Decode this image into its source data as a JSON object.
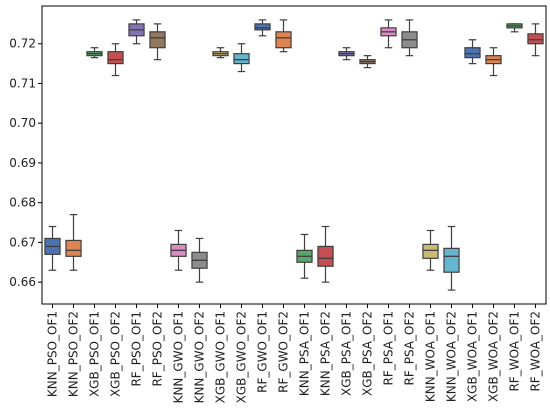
{
  "chart_data": {
    "type": "box",
    "title": "",
    "xlabel": "",
    "ylabel": "",
    "ylim": [
      0.6545,
      0.7295
    ],
    "yticks": [
      0.66,
      0.67,
      0.68,
      0.69,
      0.7,
      0.71,
      0.72
    ],
    "ytick_labels": [
      "0.66",
      "0.67",
      "0.68",
      "0.69",
      "0.70",
      "0.71",
      "0.72"
    ],
    "grid": false,
    "legend": "none",
    "categories": [
      "KNN_PSO_OF1",
      "KNN_PSO_OF2",
      "XGB_PSO_OF1",
      "XGB_PSO_OF2",
      "RF_PSO_OF1",
      "RF_PSO_OF2",
      "KNN_GWO_OF1",
      "KNN_GWO_OF2",
      "XGB_GWO_OF1",
      "XGB_GWO_OF2",
      "RF_GWO_OF1",
      "RF_GWO_OF2",
      "KNN_PSA_OF1",
      "KNN_PSA_OF2",
      "XGB_PSA_OF1",
      "XGB_PSA_OF2",
      "RF_PSA_OF1",
      "RF_PSA_OF2",
      "KNN_WOA_OF1",
      "KNN_WOA_OF2",
      "XGB_WOA_OF1",
      "XGB_WOA_OF2",
      "RF_WOA_OF1",
      "RF_WOA_OF2"
    ],
    "boxes": [
      {
        "label": "KNN_PSO_OF1",
        "whislo": 0.663,
        "q1": 0.667,
        "med": 0.669,
        "q3": 0.671,
        "whishi": 0.674,
        "color": "#4c72b0"
      },
      {
        "label": "KNN_PSO_OF2",
        "whislo": 0.663,
        "q1": 0.6665,
        "med": 0.668,
        "q3": 0.6705,
        "whishi": 0.677,
        "color": "#dd8452"
      },
      {
        "label": "XGB_PSO_OF1",
        "whislo": 0.7165,
        "q1": 0.717,
        "med": 0.7175,
        "q3": 0.718,
        "whishi": 0.719,
        "color": "#55a868"
      },
      {
        "label": "XGB_PSO_OF2",
        "whislo": 0.712,
        "q1": 0.715,
        "med": 0.716,
        "q3": 0.718,
        "whishi": 0.72,
        "color": "#c44e52"
      },
      {
        "label": "RF_PSO_OF1",
        "whislo": 0.72,
        "q1": 0.722,
        "med": 0.7235,
        "q3": 0.725,
        "whishi": 0.726,
        "color": "#8172b3"
      },
      {
        "label": "RF_PSO_OF2",
        "whislo": 0.716,
        "q1": 0.719,
        "med": 0.7215,
        "q3": 0.723,
        "whishi": 0.725,
        "color": "#937860"
      },
      {
        "label": "KNN_GWO_OF1",
        "whislo": 0.663,
        "q1": 0.6665,
        "med": 0.668,
        "q3": 0.6695,
        "whishi": 0.673,
        "color": "#da8bc3"
      },
      {
        "label": "KNN_GWO_OF2",
        "whislo": 0.66,
        "q1": 0.6635,
        "med": 0.6655,
        "q3": 0.6675,
        "whishi": 0.671,
        "color": "#8c8c8c"
      },
      {
        "label": "XGB_GWO_OF1",
        "whislo": 0.7165,
        "q1": 0.717,
        "med": 0.7175,
        "q3": 0.718,
        "whishi": 0.719,
        "color": "#ccb974"
      },
      {
        "label": "XGB_GWO_OF2",
        "whislo": 0.713,
        "q1": 0.715,
        "med": 0.716,
        "q3": 0.7175,
        "whishi": 0.72,
        "color": "#64b5cd"
      },
      {
        "label": "RF_GWO_OF1",
        "whislo": 0.722,
        "q1": 0.7235,
        "med": 0.724,
        "q3": 0.725,
        "whishi": 0.726,
        "color": "#4c72b0"
      },
      {
        "label": "RF_GWO_OF2",
        "whislo": 0.718,
        "q1": 0.719,
        "med": 0.7215,
        "q3": 0.723,
        "whishi": 0.726,
        "color": "#dd8452"
      },
      {
        "label": "KNN_PSA_OF1",
        "whislo": 0.661,
        "q1": 0.665,
        "med": 0.6665,
        "q3": 0.668,
        "whishi": 0.672,
        "color": "#55a868"
      },
      {
        "label": "KNN_PSA_OF2",
        "whislo": 0.66,
        "q1": 0.664,
        "med": 0.666,
        "q3": 0.669,
        "whishi": 0.674,
        "color": "#c44e52"
      },
      {
        "label": "XGB_PSA_OF1",
        "whislo": 0.716,
        "q1": 0.717,
        "med": 0.7175,
        "q3": 0.718,
        "whishi": 0.719,
        "color": "#8172b3"
      },
      {
        "label": "XGB_PSA_OF2",
        "whislo": 0.714,
        "q1": 0.715,
        "med": 0.7155,
        "q3": 0.716,
        "whishi": 0.717,
        "color": "#937860"
      },
      {
        "label": "RF_PSA_OF1",
        "whislo": 0.719,
        "q1": 0.722,
        "med": 0.723,
        "q3": 0.724,
        "whishi": 0.726,
        "color": "#da8bc3"
      },
      {
        "label": "RF_PSA_OF2",
        "whislo": 0.717,
        "q1": 0.719,
        "med": 0.721,
        "q3": 0.723,
        "whishi": 0.726,
        "color": "#8c8c8c"
      },
      {
        "label": "KNN_WOA_OF1",
        "whislo": 0.663,
        "q1": 0.666,
        "med": 0.668,
        "q3": 0.6695,
        "whishi": 0.673,
        "color": "#ccb974"
      },
      {
        "label": "KNN_WOA_OF2",
        "whislo": 0.658,
        "q1": 0.6625,
        "med": 0.6665,
        "q3": 0.6685,
        "whishi": 0.674,
        "color": "#64b5cd"
      },
      {
        "label": "XGB_WOA_OF1",
        "whislo": 0.715,
        "q1": 0.7165,
        "med": 0.7175,
        "q3": 0.719,
        "whishi": 0.721,
        "color": "#4c72b0"
      },
      {
        "label": "XGB_WOA_OF2",
        "whislo": 0.712,
        "q1": 0.715,
        "med": 0.716,
        "q3": 0.717,
        "whishi": 0.719,
        "color": "#dd8452"
      },
      {
        "label": "RF_WOA_OF1",
        "whislo": 0.723,
        "q1": 0.724,
        "med": 0.7245,
        "q3": 0.725,
        "whishi": 0.725,
        "color": "#55a868"
      },
      {
        "label": "RF_WOA_OF2",
        "whislo": 0.717,
        "q1": 0.72,
        "med": 0.721,
        "q3": 0.7225,
        "whishi": 0.725,
        "color": "#c44e52"
      }
    ]
  }
}
